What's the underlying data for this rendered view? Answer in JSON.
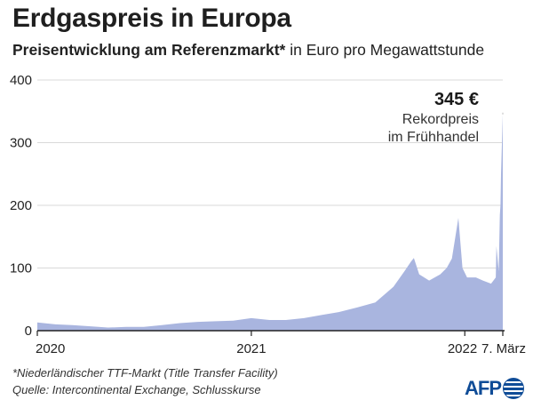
{
  "header": {
    "title": "Erdgaspreis in Europa",
    "subtitle_bold": "Preisentwicklung am Referenzmarkt*",
    "subtitle_rest": " in Euro pro Megawattstunde"
  },
  "annotation": {
    "value": "345 €",
    "line1": "Rekordpreis",
    "line2": "im Frühhandel"
  },
  "footer": {
    "note": "*Niederländischer TTF-Markt (Title Transfer Facility)",
    "source": "Quelle: Intercontinental Exchange, Schlusskurse",
    "logo": "AFP"
  },
  "colors": {
    "area": "#a9b5df",
    "axis": "#222222",
    "grid": "#d9d9d9",
    "marker": "#bbbbbb"
  },
  "chart_data": {
    "type": "area",
    "ylim": [
      0,
      400
    ],
    "yticks": [
      0,
      100,
      200,
      300,
      400
    ],
    "xticks": [
      {
        "label": "2020",
        "date": "2020-01-01"
      },
      {
        "label": "2021",
        "date": "2021-01-01"
      },
      {
        "label": "2022",
        "date": "2022-01-01"
      },
      {
        "label": "7. März",
        "date": "2022-03-07"
      }
    ],
    "series": [
      {
        "points": [
          [
            "2020-01-01",
            13
          ],
          [
            "2020-02-01",
            10
          ],
          [
            "2020-03-01",
            9
          ],
          [
            "2020-04-01",
            7
          ],
          [
            "2020-05-01",
            5
          ],
          [
            "2020-06-01",
            6
          ],
          [
            "2020-07-01",
            6
          ],
          [
            "2020-08-01",
            9
          ],
          [
            "2020-09-01",
            12
          ],
          [
            "2020-10-01",
            14
          ],
          [
            "2020-11-01",
            15
          ],
          [
            "2020-12-01",
            16
          ],
          [
            "2021-01-01",
            20
          ],
          [
            "2021-02-01",
            17
          ],
          [
            "2021-03-01",
            17
          ],
          [
            "2021-04-01",
            20
          ],
          [
            "2021-05-01",
            25
          ],
          [
            "2021-06-01",
            30
          ],
          [
            "2021-07-01",
            37
          ],
          [
            "2021-08-01",
            45
          ],
          [
            "2021-09-01",
            70
          ],
          [
            "2021-09-20",
            95
          ],
          [
            "2021-10-01",
            110
          ],
          [
            "2021-10-06",
            116
          ],
          [
            "2021-10-15",
            90
          ],
          [
            "2021-11-01",
            80
          ],
          [
            "2021-11-20",
            90
          ],
          [
            "2021-12-01",
            100
          ],
          [
            "2021-12-10",
            115
          ],
          [
            "2021-12-21",
            180
          ],
          [
            "2021-12-28",
            100
          ],
          [
            "2022-01-05",
            85
          ],
          [
            "2022-01-20",
            85
          ],
          [
            "2022-02-01",
            80
          ],
          [
            "2022-02-15",
            75
          ],
          [
            "2022-02-23",
            85
          ],
          [
            "2022-02-24",
            135
          ],
          [
            "2022-02-28",
            95
          ],
          [
            "2022-03-02",
            185
          ],
          [
            "2022-03-03",
            200
          ],
          [
            "2022-03-04",
            250
          ],
          [
            "2022-03-07",
            345
          ]
        ]
      }
    ],
    "annotation": {
      "date": "2022-03-07",
      "value": 345
    }
  }
}
